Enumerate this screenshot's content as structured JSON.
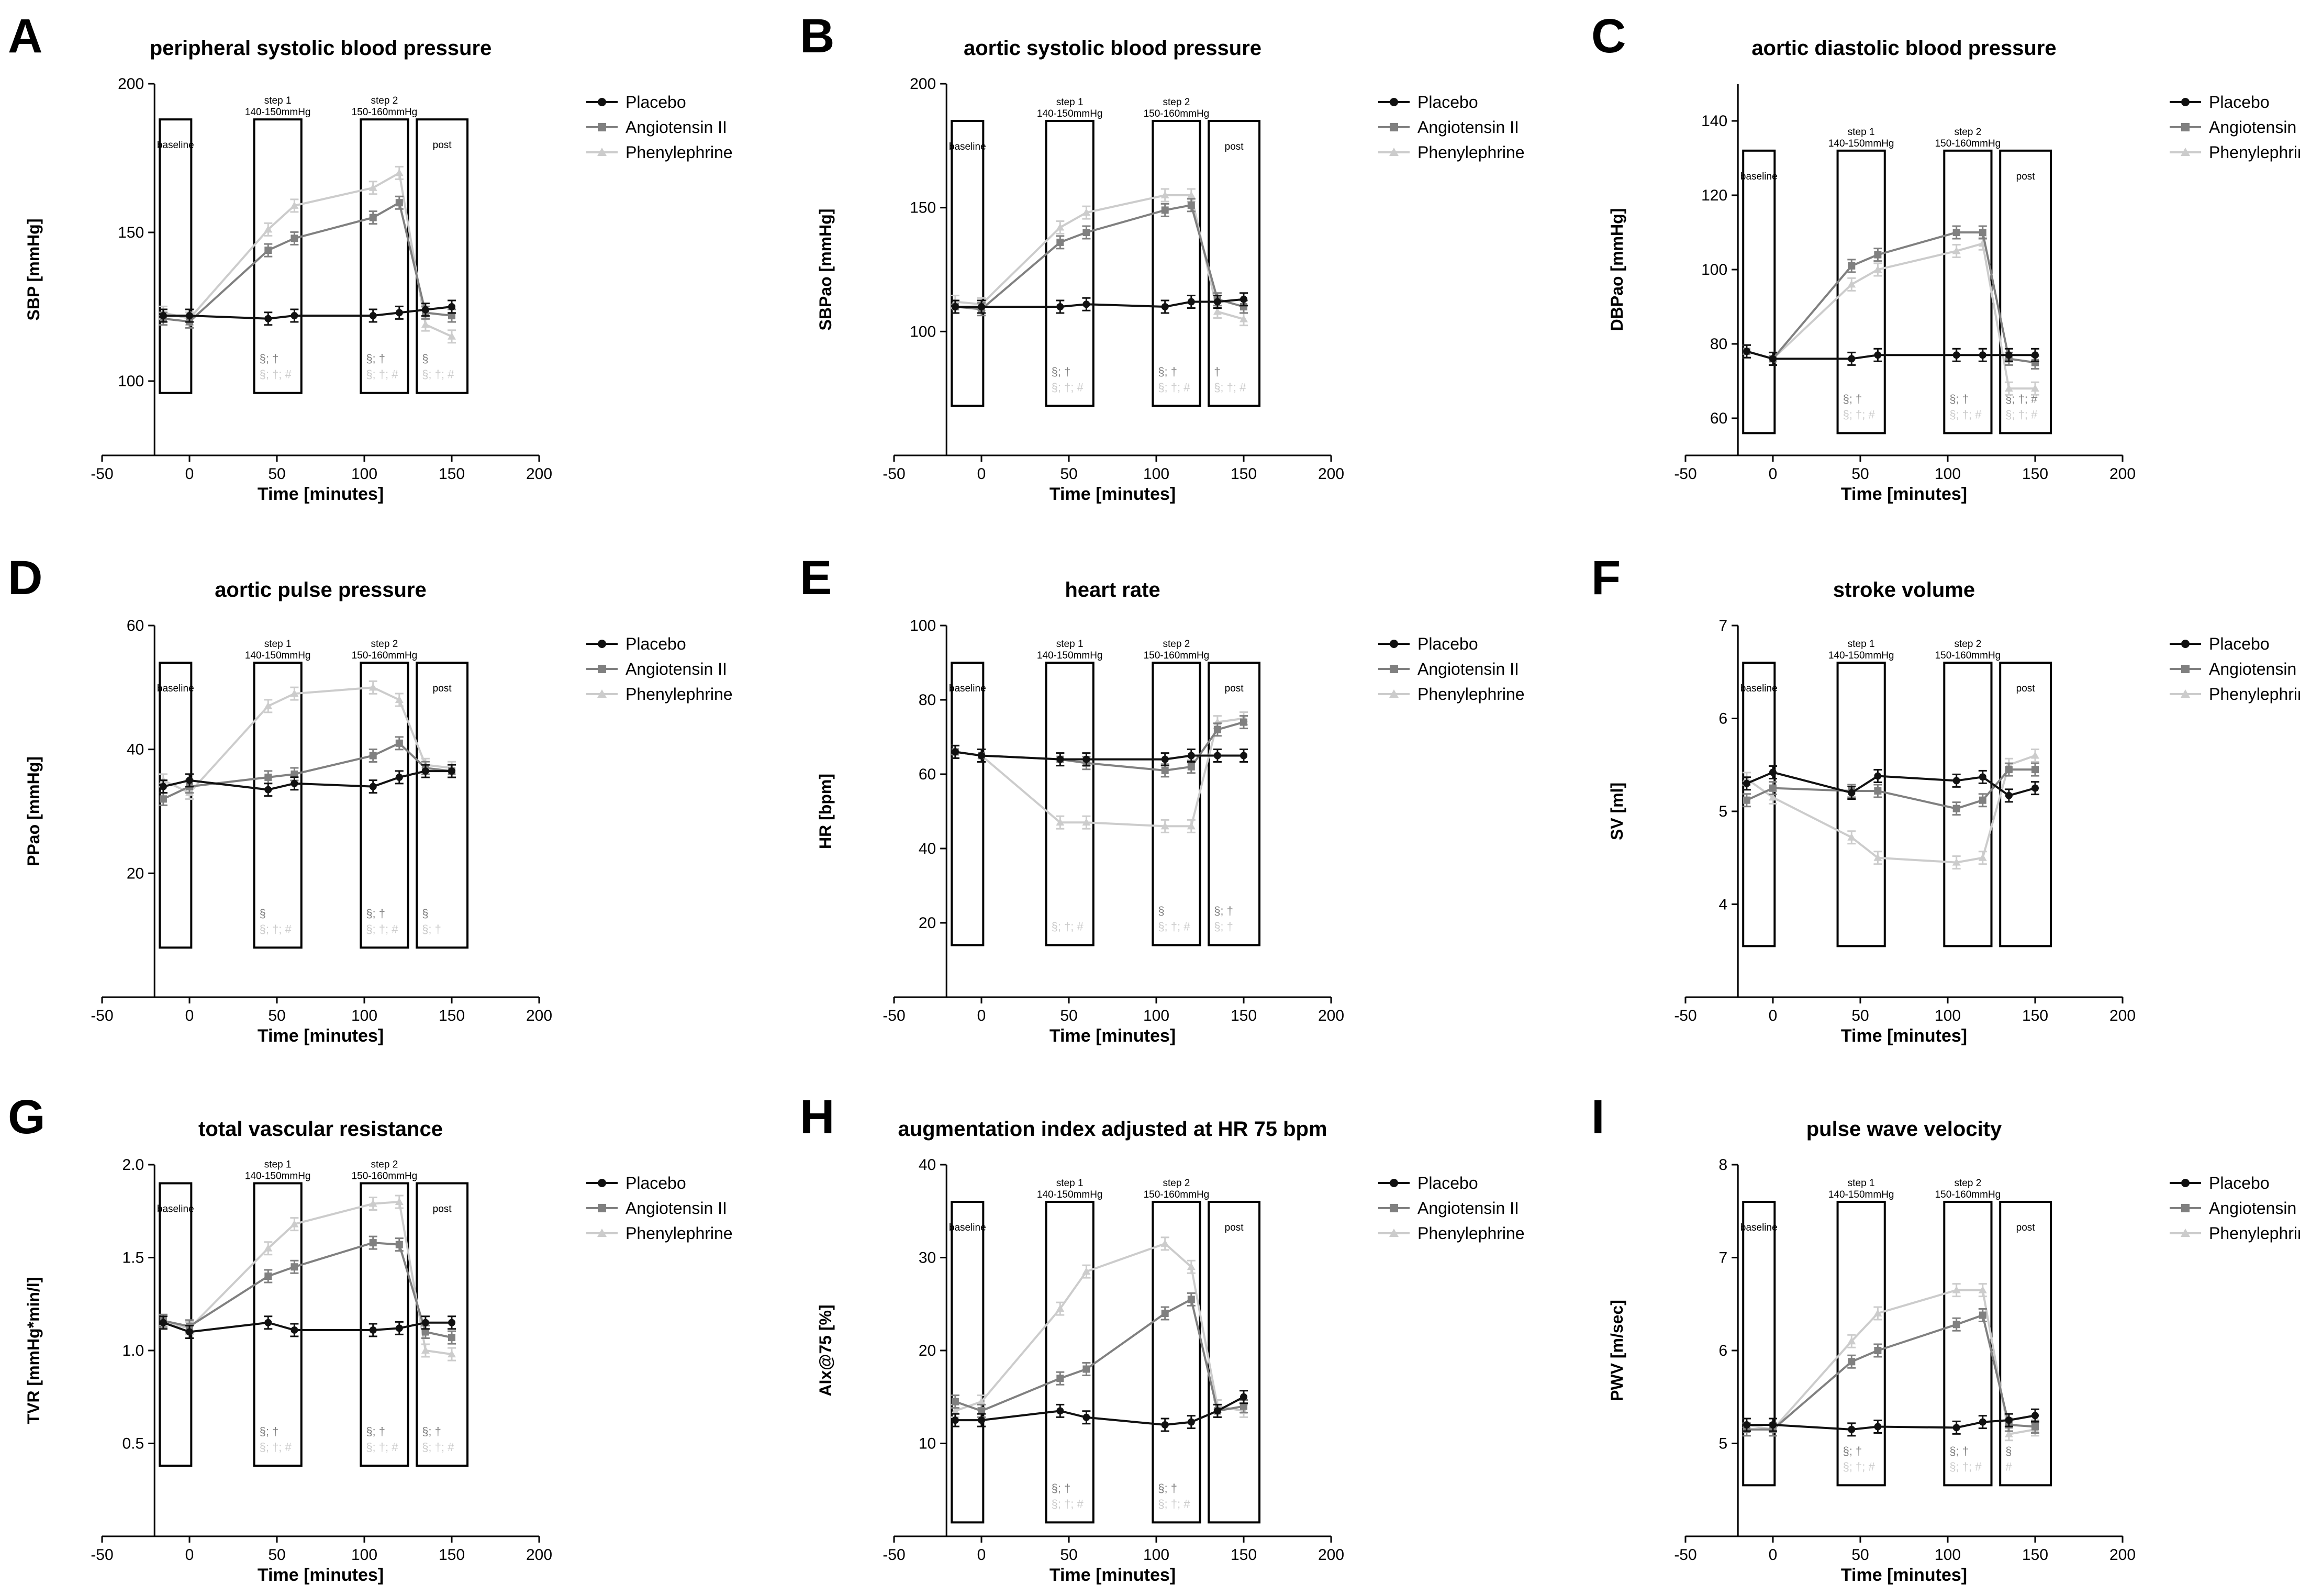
{
  "figure_title": "",
  "series_names": [
    "Placebo",
    "Angiotensin II",
    "Phenylephrine"
  ],
  "series_colors": {
    "Placebo": "#111111",
    "Angiotensin II": "#808080",
    "Phenylephrine": "#cccccc"
  },
  "x_axis": {
    "label": "Time [minutes]",
    "ticks": [
      -50,
      0,
      50,
      100,
      150,
      200
    ],
    "range": [
      -50,
      200
    ]
  },
  "time_points": [
    -15,
    0,
    45,
    60,
    105,
    120,
    135,
    150
  ],
  "phase_labels": {
    "baseline": "baseline",
    "step1": [
      "step 1",
      "140-150mmHg"
    ],
    "step2": [
      "step 2",
      "150-160mmHg"
    ],
    "post": "post"
  },
  "chart_data": [
    {
      "panel": "A",
      "type": "line",
      "title": "peripheral systolic blood pressure",
      "ylabel": "SBP [mmHg]",
      "ylim": [
        75,
        200
      ],
      "yticks": [
        100,
        150,
        200
      ],
      "box_range": [
        96,
        188
      ],
      "x": [
        -15,
        0,
        45,
        60,
        105,
        120,
        135,
        150
      ],
      "series": [
        {
          "name": "Placebo",
          "values": [
            122,
            122,
            121,
            122,
            122,
            123,
            124,
            125
          ]
        },
        {
          "name": "Angiotensin II",
          "values": [
            121,
            120,
            144,
            148,
            155,
            160,
            123,
            122
          ]
        },
        {
          "name": "Phenylephrine",
          "values": [
            123,
            121,
            151,
            159,
            165,
            170,
            119,
            115
          ]
        }
      ],
      "annotations": {
        "step1": [
          "§; †",
          "§; †; #"
        ],
        "step2": [
          "§; †",
          "§; †; #"
        ],
        "post": [
          "§",
          "§; †; #"
        ]
      }
    },
    {
      "panel": "B",
      "type": "line",
      "title": "aortic systolic blood pressure",
      "ylabel": "SBPao [mmHg]",
      "ylim": [
        50,
        200
      ],
      "yticks": [
        100,
        150,
        200
      ],
      "box_range": [
        70,
        185
      ],
      "x": [
        -15,
        0,
        45,
        60,
        105,
        120,
        135,
        150
      ],
      "series": [
        {
          "name": "Placebo",
          "values": [
            110,
            110,
            110,
            111,
            110,
            112,
            112,
            113
          ]
        },
        {
          "name": "Angiotensin II",
          "values": [
            110,
            109,
            136,
            140,
            149,
            151,
            113,
            110
          ]
        },
        {
          "name": "Phenylephrine",
          "values": [
            112,
            111,
            142,
            148,
            155,
            155,
            108,
            105
          ]
        }
      ],
      "annotations": {
        "step1": [
          "§; †",
          "§; †; #"
        ],
        "step2": [
          "§; †",
          "§; †; #"
        ],
        "post": [
          "†",
          "§; †; #"
        ]
      }
    },
    {
      "panel": "C",
      "type": "line",
      "title": "aortic diastolic blood pressure",
      "ylabel": "DBPao [mmHg]",
      "ylim": [
        50,
        150
      ],
      "yticks": [
        60,
        80,
        100,
        120,
        140
      ],
      "box_range": [
        56,
        132
      ],
      "x": [
        -15,
        0,
        45,
        60,
        105,
        120,
        135,
        150
      ],
      "series": [
        {
          "name": "Placebo",
          "values": [
            78,
            76,
            76,
            77,
            77,
            77,
            77,
            77
          ]
        },
        {
          "name": "Angiotensin II",
          "values": [
            78,
            76,
            101,
            104,
            110,
            110,
            76,
            75
          ]
        },
        {
          "name": "Phenylephrine",
          "values": [
            78,
            76,
            96,
            100,
            105,
            107,
            68,
            68
          ]
        }
      ],
      "annotations": {
        "step1": [
          "§; †",
          "§; †; #"
        ],
        "step2": [
          "§; †",
          "§; †; #"
        ],
        "post": [
          "§; †; #",
          "§; †; #"
        ]
      }
    },
    {
      "panel": "D",
      "type": "line",
      "title": "aortic pulse pressure",
      "ylabel": "PPao [mmHg]",
      "ylim": [
        0,
        60
      ],
      "yticks": [
        20,
        40,
        60
      ],
      "box_range": [
        8,
        54
      ],
      "x": [
        -15,
        0,
        45,
        60,
        105,
        120,
        135,
        150
      ],
      "series": [
        {
          "name": "Placebo",
          "values": [
            34,
            35,
            33.5,
            34.5,
            34,
            35.5,
            36.5,
            36.5
          ]
        },
        {
          "name": "Angiotensin II",
          "values": [
            32,
            34,
            35.5,
            36,
            39,
            41,
            37,
            36.5
          ]
        },
        {
          "name": "Phenylephrine",
          "values": [
            35,
            33,
            47,
            49,
            50,
            48,
            37.5,
            37
          ]
        }
      ],
      "annotations": {
        "step1": [
          "§",
          "§; †; #"
        ],
        "step2": [
          "§; †",
          "§; †; #"
        ],
        "post": [
          "§",
          "§; †"
        ]
      }
    },
    {
      "panel": "E",
      "type": "line",
      "title": "heart rate",
      "ylabel": "HR    [bpm]",
      "ylim": [
        0,
        100
      ],
      "yticks": [
        20,
        40,
        60,
        80,
        100
      ],
      "box_range": [
        14,
        90
      ],
      "x": [
        -15,
        0,
        45,
        60,
        105,
        120,
        135,
        150
      ],
      "series": [
        {
          "name": "Placebo",
          "values": [
            66,
            65,
            64,
            64,
            64,
            65,
            65,
            65
          ]
        },
        {
          "name": "Angiotensin II",
          "values": [
            66,
            65,
            64,
            63,
            61,
            62,
            72,
            74
          ]
        },
        {
          "name": "Phenylephrine",
          "values": [
            66,
            65,
            47,
            47,
            46,
            46,
            74,
            75
          ]
        }
      ],
      "annotations": {
        "step1": [
          "",
          "§; †; #"
        ],
        "step2": [
          "§",
          "§; †; #"
        ],
        "post": [
          "§; †",
          "§; †"
        ]
      }
    },
    {
      "panel": "F",
      "type": "line",
      "title": "stroke volume",
      "ylabel": "SV [ml]",
      "ylim": [
        3,
        7
      ],
      "yticks": [
        4,
        5,
        6,
        7
      ],
      "box_range": [
        3.55,
        6.6
      ],
      "x": [
        -15,
        0,
        45,
        60,
        105,
        120,
        135,
        150
      ],
      "series": [
        {
          "name": "Placebo",
          "values": [
            5.3,
            5.42,
            5.2,
            5.38,
            5.33,
            5.37,
            5.17,
            5.25
          ]
        },
        {
          "name": "Angiotensin II",
          "values": [
            5.12,
            5.25,
            5.22,
            5.22,
            5.03,
            5.12,
            5.45,
            5.45
          ]
        },
        {
          "name": "Phenylephrine",
          "values": [
            5.35,
            5.15,
            4.72,
            4.5,
            4.45,
            4.5,
            5.5,
            5.6
          ]
        }
      ],
      "annotations": {
        "step1": [
          "",
          ""
        ],
        "step2": [
          "",
          ""
        ],
        "post": [
          "",
          ""
        ]
      }
    },
    {
      "panel": "G",
      "type": "line",
      "title": "total vascular resistance",
      "ylabel": "TVR [mmHg*min/l]",
      "ylim": [
        0,
        2.0
      ],
      "yticks": [
        0.5,
        1.0,
        1.5,
        2.0
      ],
      "box_range": [
        0.38,
        1.9
      ],
      "x": [
        -15,
        0,
        45,
        60,
        105,
        120,
        135,
        150
      ],
      "series": [
        {
          "name": "Placebo",
          "values": [
            1.15,
            1.1,
            1.15,
            1.11,
            1.11,
            1.12,
            1.15,
            1.15
          ]
        },
        {
          "name": "Angiotensin II",
          "values": [
            1.16,
            1.13,
            1.4,
            1.45,
            1.58,
            1.57,
            1.1,
            1.07
          ]
        },
        {
          "name": "Phenylephrine",
          "values": [
            1.15,
            1.12,
            1.55,
            1.68,
            1.79,
            1.8,
            1.0,
            0.98
          ]
        }
      ],
      "annotations": {
        "step1": [
          "§; †",
          "§; †; #"
        ],
        "step2": [
          "§; †",
          "§; †; #"
        ],
        "post": [
          "§; †",
          "§; †; #"
        ]
      }
    },
    {
      "panel": "H",
      "type": "line",
      "title": "augmentation index adjusted at HR 75 bpm",
      "ylabel": "AIx@75 [%]",
      "ylim": [
        0,
        40
      ],
      "yticks": [
        10,
        20,
        30,
        40
      ],
      "box_range": [
        1.5,
        36
      ],
      "x": [
        -15,
        0,
        45,
        60,
        105,
        120,
        135,
        150
      ],
      "series": [
        {
          "name": "Placebo",
          "values": [
            12.5,
            12.5,
            13.5,
            12.8,
            12,
            12.3,
            13.5,
            15
          ]
        },
        {
          "name": "Angiotensin II",
          "values": [
            14.5,
            13.5,
            17,
            18,
            24,
            25.5,
            13.5,
            14
          ]
        },
        {
          "name": "Phenylephrine",
          "values": [
            13.5,
            14.5,
            24.5,
            28.5,
            31.5,
            29,
            14,
            13.5
          ]
        }
      ],
      "annotations": {
        "step1": [
          "§; †",
          "§; †; #"
        ],
        "step2": [
          "§; †",
          "§; †; #"
        ],
        "post": [
          "",
          ""
        ]
      }
    },
    {
      "panel": "I",
      "type": "line",
      "title": "pulse wave velocity",
      "ylabel": "PWV [m/sec]",
      "ylim": [
        4,
        8
      ],
      "yticks": [
        5,
        6,
        7,
        8
      ],
      "box_range": [
        4.55,
        7.6
      ],
      "x": [
        -15,
        0,
        45,
        60,
        105,
        120,
        135,
        150
      ],
      "series": [
        {
          "name": "Placebo",
          "values": [
            5.2,
            5.2,
            5.15,
            5.18,
            5.17,
            5.23,
            5.25,
            5.3
          ]
        },
        {
          "name": "Angiotensin II",
          "values": [
            5.15,
            5.15,
            5.88,
            6.0,
            6.28,
            6.38,
            5.2,
            5.18
          ]
        },
        {
          "name": "Phenylephrine",
          "values": [
            5.2,
            5.15,
            6.1,
            6.4,
            6.65,
            6.65,
            5.1,
            5.15
          ]
        }
      ],
      "annotations": {
        "step1": [
          "§; †",
          "§; †; #"
        ],
        "step2": [
          "§; †",
          "§; †; #"
        ],
        "post": [
          "§",
          "#"
        ]
      }
    }
  ]
}
